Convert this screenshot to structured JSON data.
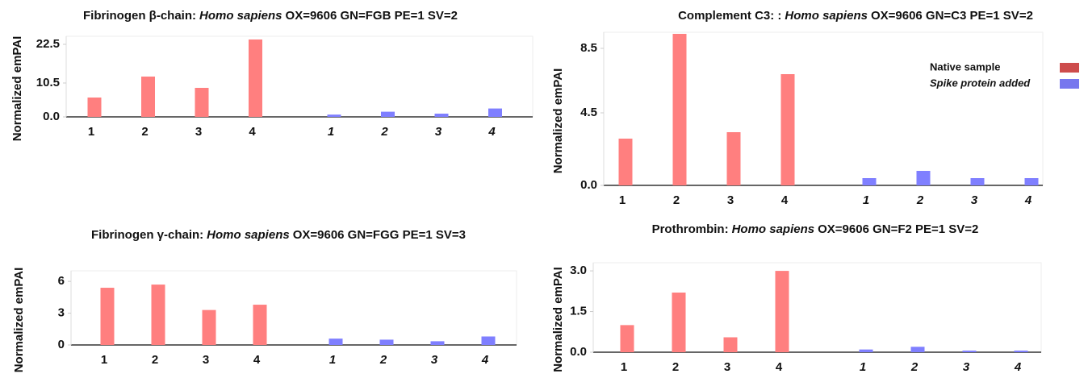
{
  "chart_data": [
    {
      "type": "bar",
      "title_parts": [
        {
          "text": "Fibrinogen β-chain:",
          "italic": false
        },
        {
          "text": "Homo sapiens",
          "italic": true
        },
        {
          "text": "OX=9606 GN=FGB PE=1 SV=2",
          "italic": false
        }
      ],
      "y_label": "Normalized emPAI",
      "categories": [
        "1",
        "2",
        "3",
        "4",
        "1",
        "2",
        "3",
        "4"
      ],
      "values": [
        6,
        12.5,
        9,
        24,
        0.7,
        1.6,
        1,
        2.6
      ],
      "colors": [
        "#ff7f7f",
        "#ff7f7f",
        "#ff7f7f",
        "#ff7f7f",
        "#7f7fff",
        "#7f7fff",
        "#7f7fff",
        "#7f7fff"
      ],
      "ylim": [
        0,
        25
      ],
      "yticks": [
        {
          "value": 0,
          "label": "0.0"
        },
        {
          "value": 10.5,
          "label": "10.5"
        },
        {
          "value": 22.5,
          "label": "22.5"
        }
      ]
    },
    {
      "type": "bar",
      "title_parts": [
        {
          "text": "Complement C3: :",
          "italic": false
        },
        {
          "text": "Homo sapiens",
          "italic": true
        },
        {
          "text": "OX=9606 GN=C3 PE=1 SV=2",
          "italic": false
        }
      ],
      "y_label": "Normalized emPAI",
      "categories": [
        "1",
        "2",
        "3",
        "4",
        "1",
        "2",
        "3",
        "4"
      ],
      "values": [
        2.9,
        9.4,
        3.3,
        6.9,
        0.45,
        0.9,
        0.45,
        0.45
      ],
      "colors": [
        "#ff7f7f",
        "#ff7f7f",
        "#ff7f7f",
        "#ff7f7f",
        "#7f7fff",
        "#7f7fff",
        "#7f7fff",
        "#7f7fff"
      ],
      "ylim": [
        0,
        9.5
      ],
      "yticks": [
        {
          "value": 0,
          "label": "0.0"
        },
        {
          "value": 4.5,
          "label": "4.5"
        },
        {
          "value": 8.5,
          "label": "8.5"
        }
      ],
      "legend": {
        "position": "right",
        "items": [
          {
            "name": "Native sample",
            "color": "#cd4c4c",
            "italic": false
          },
          {
            "name": "Spike protein added",
            "color": "#7777ee",
            "italic": true
          }
        ]
      }
    },
    {
      "type": "bar",
      "title_parts": [
        {
          "text": "Fibrinogen γ-chain:",
          "italic": false
        },
        {
          "text": "Homo sapiens",
          "italic": true
        },
        {
          "text": "OX=9606 GN=FGG PE=1 SV=3",
          "italic": false
        }
      ],
      "y_label": "Normalized emPAI",
      "categories": [
        "1",
        "2",
        "3",
        "4",
        "1",
        "2",
        "3",
        "4"
      ],
      "values": [
        5.4,
        5.7,
        3.3,
        3.8,
        0.6,
        0.5,
        0.35,
        0.8
      ],
      "colors": [
        "#ff7f7f",
        "#ff7f7f",
        "#ff7f7f",
        "#ff7f7f",
        "#7f7fff",
        "#7f7fff",
        "#7f7fff",
        "#7f7fff"
      ],
      "ylim": [
        0,
        7
      ],
      "yticks": [
        0,
        3,
        6
      ]
    },
    {
      "type": "bar",
      "title_parts": [
        {
          "text": "Prothrombin:",
          "italic": false
        },
        {
          "text": "Homo sapiens",
          "italic": true
        },
        {
          "text": "OX=9606 GN=F2 PE=1 SV=2",
          "italic": false
        }
      ],
      "y_label": "Normalized emPAI",
      "categories": [
        "1",
        "2",
        "3",
        "4",
        "1",
        "2",
        "3",
        "4"
      ],
      "values": [
        1.0,
        2.2,
        0.55,
        3.0,
        0.1,
        0.2,
        0.06,
        0.06
      ],
      "colors": [
        "#ff7f7f",
        "#ff7f7f",
        "#ff7f7f",
        "#ff7f7f",
        "#7f7fff",
        "#7f7fff",
        "#7f7fff",
        "#7f7fff"
      ],
      "ylim": [
        0,
        3.3
      ],
      "yticks": [
        {
          "value": 0,
          "label": "0.0"
        },
        {
          "value": 1.5,
          "label": "1.5"
        },
        {
          "value": 3.0,
          "label": "3.0"
        }
      ]
    }
  ]
}
